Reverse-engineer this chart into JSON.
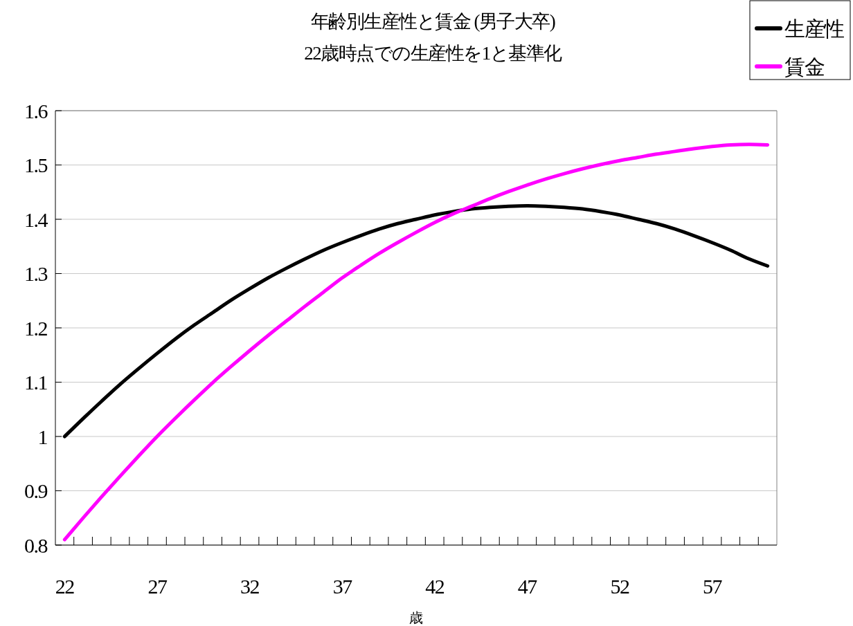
{
  "chart_data": {
    "type": "line",
    "title": "年齢別生産性と賃金 (男子大卒)",
    "subtitle": "22歳時点での生産性を1と基準化",
    "xlabel": "歳",
    "x": [
      22,
      23,
      24,
      25,
      26,
      27,
      28,
      29,
      30,
      31,
      32,
      33,
      34,
      35,
      36,
      37,
      38,
      39,
      40,
      41,
      42,
      43,
      44,
      45,
      46,
      47,
      48,
      49,
      50,
      51,
      52,
      53,
      54,
      55,
      56,
      57,
      58,
      59,
      60
    ],
    "xlim": [
      21.5,
      60.5
    ],
    "xticks": [
      22,
      27,
      32,
      37,
      42,
      47,
      52,
      57,
      {
        "value": 22.5,
        "label": null
      },
      {
        "value": 23.5,
        "label": null
      },
      {
        "value": 24.5,
        "label": null
      },
      {
        "value": 25.5,
        "label": null
      },
      {
        "value": 26.5,
        "label": null
      },
      {
        "value": 27.5,
        "label": null
      },
      {
        "value": 28.5,
        "label": null
      },
      {
        "value": 29.5,
        "label": null
      },
      {
        "value": 30.5,
        "label": null
      },
      {
        "value": 31.5,
        "label": null
      },
      {
        "value": 32.5,
        "label": null
      },
      {
        "value": 33.5,
        "label": null
      },
      {
        "value": 34.5,
        "label": null
      },
      {
        "value": 35.5,
        "label": null
      },
      {
        "value": 36.5,
        "label": null
      },
      {
        "value": 37.5,
        "label": null
      },
      {
        "value": 38.5,
        "label": null
      },
      {
        "value": 39.5,
        "label": null
      },
      {
        "value": 40.5,
        "label": null
      },
      {
        "value": 41.5,
        "label": null
      },
      {
        "value": 42.5,
        "label": null
      },
      {
        "value": 43.5,
        "label": null
      },
      {
        "value": 44.5,
        "label": null
      },
      {
        "value": 45.5,
        "label": null
      },
      {
        "value": 46.5,
        "label": null
      },
      {
        "value": 47.5,
        "label": null
      },
      {
        "value": 48.5,
        "label": null
      },
      {
        "value": 49.5,
        "label": null
      },
      {
        "value": 50.5,
        "label": null
      },
      {
        "value": 51.5,
        "label": null
      },
      {
        "value": 52.5,
        "label": null
      },
      {
        "value": 53.5,
        "label": null
      },
      {
        "value": 54.5,
        "label": null
      },
      {
        "value": 55.5,
        "label": null
      },
      {
        "value": 56.5,
        "label": null
      },
      {
        "value": 57.5,
        "label": null
      },
      {
        "value": 58.5,
        "label": null
      },
      {
        "value": 59.5,
        "label": null
      }
    ],
    "ylim": [
      0.8,
      1.6
    ],
    "yticks": [
      0.8,
      0.9,
      1,
      1.1,
      1.2,
      1.3,
      1.4,
      1.5,
      1.6
    ],
    "grid": "y",
    "legend": "top right",
    "marker": "none",
    "line_style": "solid",
    "series": [
      {
        "name": "生産性",
        "color": "#000000",
        "values": [
          1.0,
          1.033,
          1.065,
          1.096,
          1.125,
          1.153,
          1.18,
          1.205,
          1.228,
          1.251,
          1.272,
          1.292,
          1.31,
          1.327,
          1.343,
          1.357,
          1.37,
          1.382,
          1.392,
          1.4,
          1.408,
          1.414,
          1.419,
          1.422,
          1.424,
          1.425,
          1.424,
          1.422,
          1.419,
          1.414,
          1.408,
          1.4,
          1.392,
          1.382,
          1.37,
          1.357,
          1.343,
          1.327,
          1.314
        ]
      },
      {
        "name": "賃金",
        "color": "#ff00ff",
        "values": [
          0.81,
          0.85,
          0.889,
          0.927,
          0.964,
          1.0,
          1.034,
          1.067,
          1.099,
          1.129,
          1.158,
          1.186,
          1.213,
          1.24,
          1.266,
          1.292,
          1.315,
          1.337,
          1.357,
          1.376,
          1.394,
          1.41,
          1.424,
          1.438,
          1.451,
          1.463,
          1.474,
          1.484,
          1.493,
          1.501,
          1.508,
          1.514,
          1.52,
          1.525,
          1.53,
          1.534,
          1.537,
          1.538,
          1.537
        ]
      }
    ]
  }
}
